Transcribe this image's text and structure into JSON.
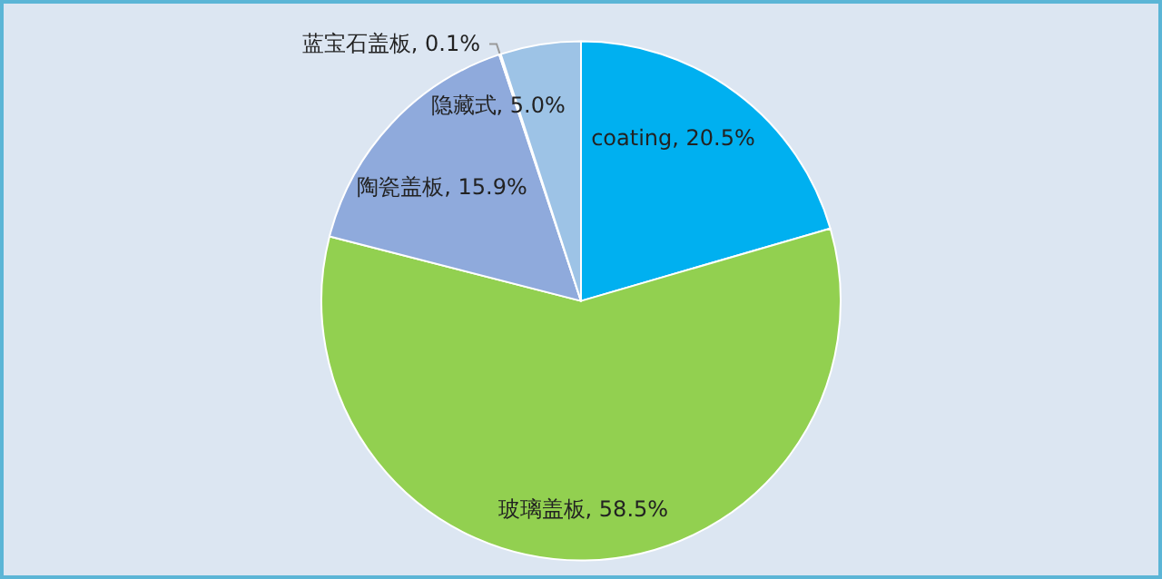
{
  "chart_data": {
    "type": "pie",
    "categories": [
      "coating",
      "玻璃盖板",
      "陶瓷盖板",
      "蓝宝石盖板",
      "隐藏式"
    ],
    "values": [
      20.5,
      58.5,
      15.9,
      0.1,
      5.0
    ],
    "colors": [
      "#00b0f0",
      "#92d050",
      "#8faadc",
      "#c5d3e8",
      "#9dc3e6"
    ],
    "value_labels": [
      ", 20.5%",
      ", 58.5%",
      ", 15.9%",
      ", 0.1%",
      ", 5.0%"
    ],
    "legend": false
  }
}
